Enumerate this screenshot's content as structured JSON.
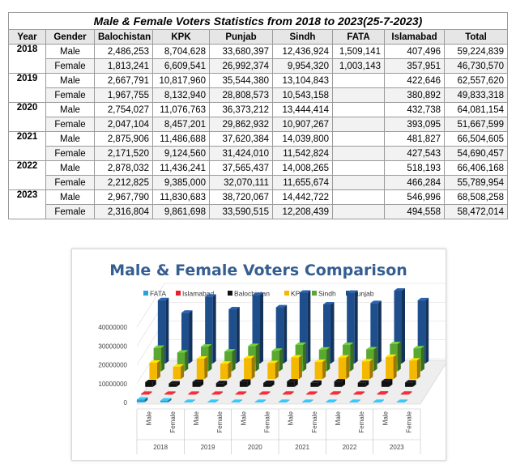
{
  "table": {
    "title": "Male & Female Voters Statistics from 2018 to 2023(25-7-2023)",
    "headers": [
      "Year",
      "Gender",
      "Balochistan",
      "KPK",
      "Punjab",
      "Sindh",
      "FATA",
      "Islamabad",
      "Total"
    ],
    "rows": [
      [
        "2018",
        "Male",
        "2,486,253",
        "8,704,628",
        "33,680,397",
        "12,436,924",
        "1,509,141",
        "407,496",
        "59,224,839"
      ],
      [
        "",
        "Female",
        "1,813,241",
        "6,609,541",
        "26,992,374",
        "9,954,320",
        "1,003,143",
        "357,951",
        "46,730,570"
      ],
      [
        "2019",
        "Male",
        "2,667,791",
        "10,817,960",
        "35,544,380",
        "13,104,843",
        "",
        "422,646",
        "62,557,620"
      ],
      [
        "",
        "Female",
        "1,967,755",
        "8,132,940",
        "28,808,573",
        "10,543,158",
        "",
        "380,892",
        "49,833,318"
      ],
      [
        "2020",
        "Male",
        "2,754,027",
        "11,076,763",
        "36,373,212",
        "13,444,414",
        "",
        "432,738",
        "64,081,154"
      ],
      [
        "",
        "Female",
        "2,047,104",
        "8,457,201",
        "29,862,932",
        "10,907,267",
        "",
        "393,095",
        "51,667,599"
      ],
      [
        "2021",
        "Male",
        "2,875,906",
        "11,486,688",
        "37,620,384",
        "14,039,800",
        "",
        "481,827",
        "66,504,605"
      ],
      [
        "",
        "Female",
        "2,171,520",
        "9,124,560",
        "31,424,010",
        "11,542,824",
        "",
        "427,543",
        "54,690,457"
      ],
      [
        "2022",
        "Male",
        "2,878,032",
        "11,436,241",
        "37,565,437",
        "14,008,265",
        "",
        "518,193",
        "66,406,168"
      ],
      [
        "",
        "Female",
        "2,212,825",
        "9,385,000",
        "32,070,111",
        "11,655,674",
        "",
        "466,284",
        "55,789,954"
      ],
      [
        "2023",
        "Male",
        "2,967,790",
        "11,830,683",
        "38,720,067",
        "14,442,722",
        "",
        "546,996",
        "68,508,258"
      ],
      [
        "",
        "Female",
        "2,316,804",
        "9,861,698",
        "33,590,515",
        "12,208,439",
        "",
        "494,558",
        "58,472,014"
      ]
    ]
  },
  "chart_data": {
    "type": "bar",
    "title": "Male & Female Voters Comparison",
    "xlabel": "",
    "ylabel": "",
    "ylim": [
      0,
      40000000
    ],
    "yticks": [
      "0",
      "10000000",
      "20000000",
      "30000000",
      "40000000"
    ],
    "legend_position": "top",
    "grid": true,
    "three_d": true,
    "groups": [
      "2018",
      "2019",
      "2020",
      "2021",
      "2022",
      "2023"
    ],
    "categories": [
      "Male",
      "Female",
      "Male",
      "Female",
      "Male",
      "Female",
      "Male",
      "Female",
      "Male",
      "Female",
      "Male",
      "Female"
    ],
    "series": [
      {
        "name": "FATA",
        "color": "#29a3d9",
        "values": [
          1509141,
          1003143,
          0,
          0,
          0,
          0,
          0,
          0,
          0,
          0,
          0,
          0
        ]
      },
      {
        "name": "Islamabad",
        "color": "#e8202a",
        "values": [
          407496,
          357951,
          422646,
          380892,
          432738,
          393095,
          481827,
          427543,
          518193,
          466284,
          546996,
          494558
        ]
      },
      {
        "name": "Balochistan",
        "color": "#111111",
        "values": [
          2486253,
          1813241,
          2667791,
          1967755,
          2754027,
          2047104,
          2875906,
          2171520,
          2878032,
          2212825,
          2967790,
          2316804
        ]
      },
      {
        "name": "KPK",
        "color": "#f5b800",
        "values": [
          8704628,
          6609541,
          10817960,
          8132940,
          11076763,
          8457201,
          11486688,
          9124560,
          11436241,
          9385000,
          11830683,
          9861698
        ]
      },
      {
        "name": "Sindh",
        "color": "#5aa832",
        "values": [
          12436924,
          9954320,
          13104843,
          10543158,
          13444414,
          10907267,
          14039800,
          11542824,
          14008265,
          11655674,
          14442722,
          12208439
        ]
      },
      {
        "name": "Punjab",
        "color": "#1f4e8c",
        "values": [
          33680397,
          26992374,
          35544380,
          28808573,
          36373212,
          29862932,
          37620384,
          31424010,
          37565437,
          32070111,
          38720067,
          33590515
        ]
      }
    ]
  }
}
